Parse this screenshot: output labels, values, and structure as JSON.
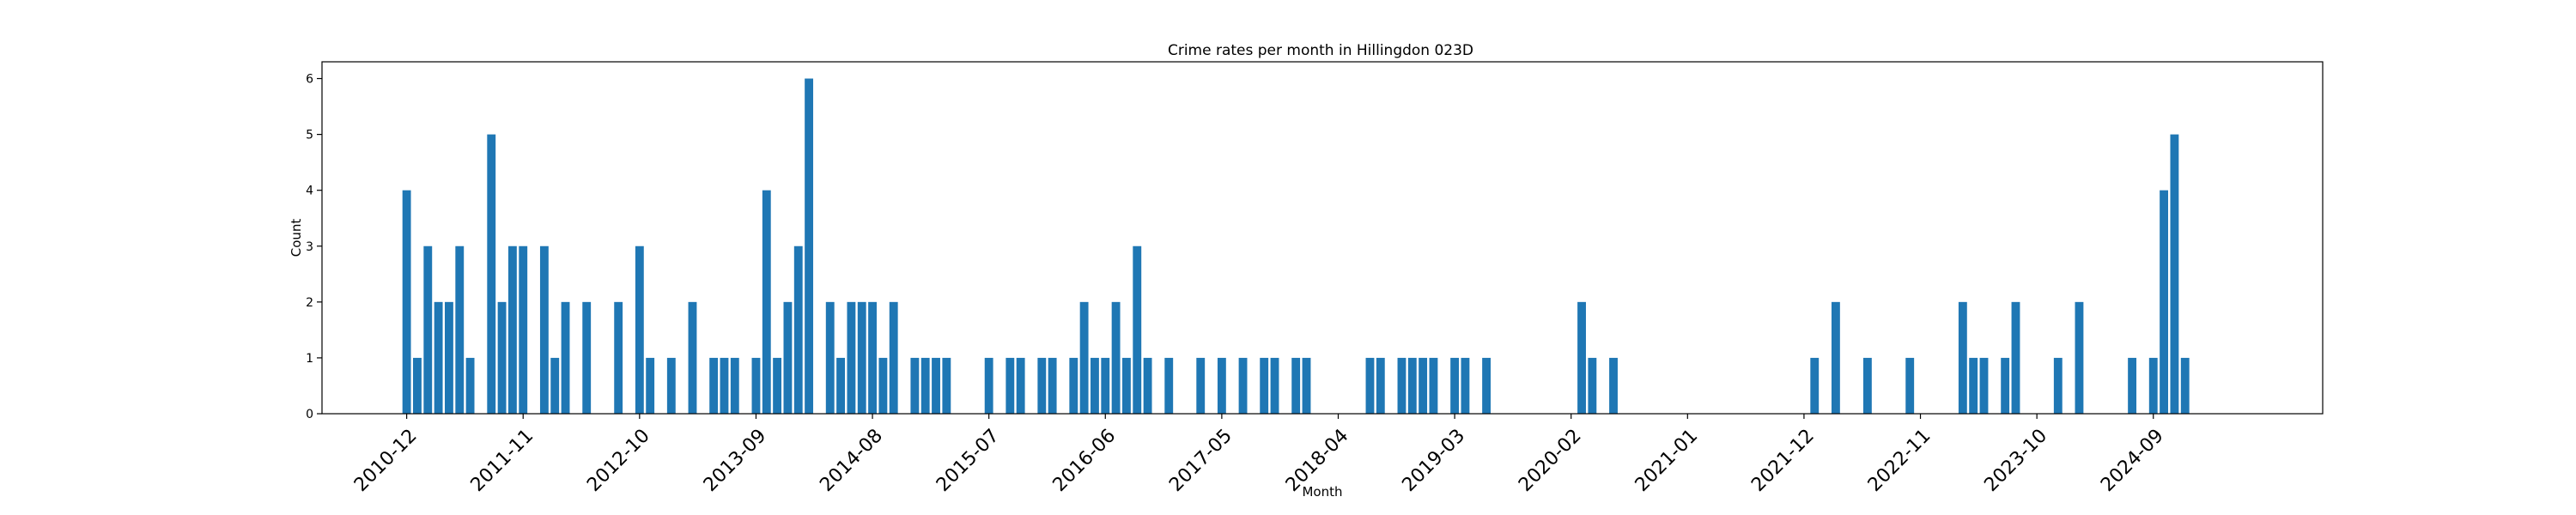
{
  "chart_data": {
    "type": "bar",
    "title": "Crime rates per month in Hillingdon 023D",
    "xlabel": "Month",
    "ylabel": "Count",
    "ylim": [
      0,
      6.3
    ],
    "yticks": [
      0,
      1,
      2,
      3,
      4,
      5,
      6
    ],
    "xlim": [
      "2010-04",
      "2026-01"
    ],
    "xticks": [
      "2010-12",
      "2011-11",
      "2012-10",
      "2013-09",
      "2014-08",
      "2015-07",
      "2016-06",
      "2017-05",
      "2018-04",
      "2019-03",
      "2020-02",
      "2021-01",
      "2021-12",
      "2022-11",
      "2023-10",
      "2024-09"
    ],
    "bar_color": "#1f77b4",
    "grid": false,
    "legend": "none",
    "categories": [
      "2010-12",
      "2011-01",
      "2011-02",
      "2011-03",
      "2011-04",
      "2011-05",
      "2011-06",
      "2011-08",
      "2011-09",
      "2011-10",
      "2011-11",
      "2012-01",
      "2012-02",
      "2012-03",
      "2012-05",
      "2012-08",
      "2012-10",
      "2012-11",
      "2013-01",
      "2013-03",
      "2013-05",
      "2013-06",
      "2013-07",
      "2013-09",
      "2013-10",
      "2013-11",
      "2013-12",
      "2014-01",
      "2014-02",
      "2014-04",
      "2014-05",
      "2014-06",
      "2014-07",
      "2014-08",
      "2014-09",
      "2014-10",
      "2014-12",
      "2015-01",
      "2015-02",
      "2015-03",
      "2015-07",
      "2015-09",
      "2015-10",
      "2015-12",
      "2016-01",
      "2016-03",
      "2016-04",
      "2016-05",
      "2016-06",
      "2016-07",
      "2016-08",
      "2016-09",
      "2016-10",
      "2016-12",
      "2017-03",
      "2017-05",
      "2017-07",
      "2017-09",
      "2017-10",
      "2017-12",
      "2018-01",
      "2018-07",
      "2018-08",
      "2018-10",
      "2018-11",
      "2018-12",
      "2019-01",
      "2019-03",
      "2019-04",
      "2019-06",
      "2020-03",
      "2020-04",
      "2020-06",
      "2022-01",
      "2022-03",
      "2022-06",
      "2022-10",
      "2023-03",
      "2023-04",
      "2023-05",
      "2023-07",
      "2023-08",
      "2023-12",
      "2024-02",
      "2024-07",
      "2024-09",
      "2024-10",
      "2024-11",
      "2024-12"
    ],
    "values": [
      4,
      1,
      3,
      2,
      2,
      3,
      1,
      5,
      2,
      3,
      3,
      3,
      1,
      2,
      2,
      2,
      3,
      1,
      1,
      2,
      1,
      1,
      1,
      1,
      4,
      1,
      2,
      3,
      6,
      2,
      1,
      2,
      2,
      2,
      1,
      2,
      1,
      1,
      1,
      1,
      1,
      1,
      1,
      1,
      1,
      1,
      2,
      1,
      1,
      2,
      1,
      3,
      1,
      1,
      1,
      1,
      1,
      1,
      1,
      1,
      1,
      1,
      1,
      1,
      1,
      1,
      1,
      1,
      1,
      1,
      2,
      1,
      1,
      1,
      2,
      1,
      1,
      2,
      1,
      1,
      1,
      2,
      1,
      2,
      1,
      1,
      4,
      5,
      1
    ]
  }
}
